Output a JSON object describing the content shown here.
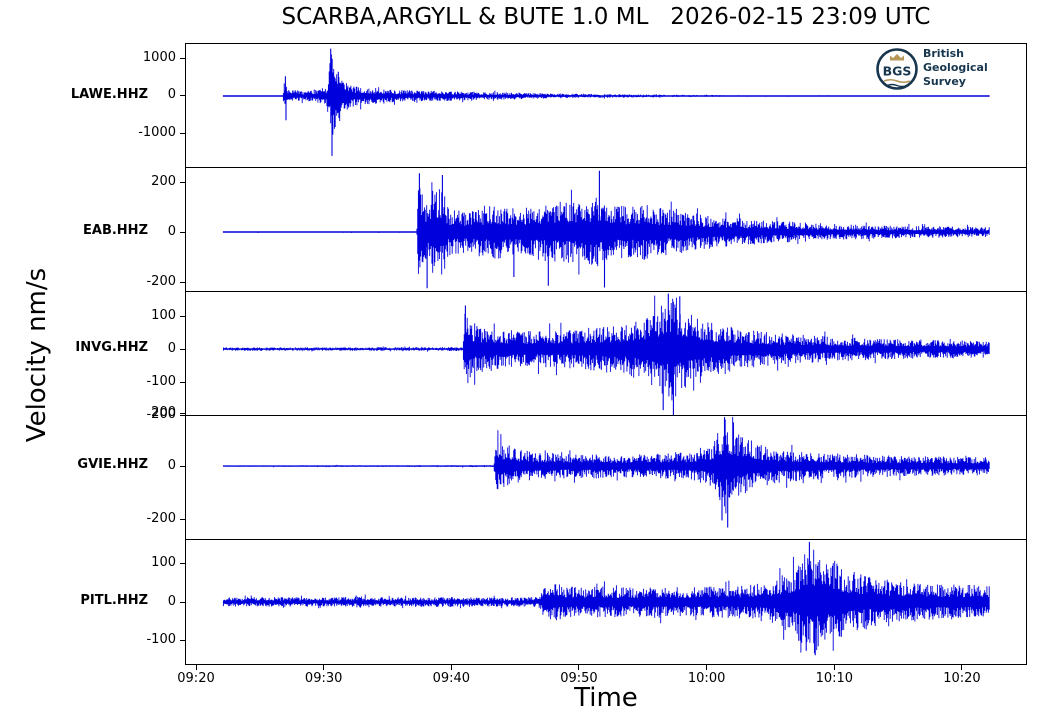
{
  "chart_data": {
    "type": "line",
    "subtype": "seismogram-multitrace",
    "title": "SCARBA,ARGYLL & BUTE 1.0 ML   2026-02-15 23:09 UTC",
    "xlabel": "Time",
    "ylabel": "Velocity nm/s",
    "colors": {
      "trace": "#0000dd",
      "axis": "#000000",
      "logo_navy": "#17364e",
      "logo_gold": "#b5985a"
    },
    "x_axis": {
      "ticks": [
        "09:20",
        "09:30",
        "09:40",
        "09:50",
        "10:00",
        "10:10",
        "10:20"
      ],
      "tick_minutes": [
        20,
        30,
        40,
        50,
        60,
        70,
        80
      ],
      "data_start_min": 22.15,
      "data_end_min": 82.15
    },
    "series": [
      {
        "label": "LAWE.HHZ",
        "yticks": [
          1000,
          0,
          -1000
        ],
        "ylim": [
          -1900,
          1370
        ],
        "envelope": [
          [
            22.15,
            3
          ],
          [
            26.8,
            3
          ],
          [
            26.95,
            480
          ],
          [
            27.2,
            130
          ],
          [
            27.8,
            160
          ],
          [
            28.6,
            130
          ],
          [
            29.5,
            170
          ],
          [
            30.2,
            230
          ],
          [
            30.5,
            900
          ],
          [
            30.7,
            1500
          ],
          [
            31.0,
            700
          ],
          [
            31.5,
            420
          ],
          [
            32.2,
            300
          ],
          [
            33.5,
            230
          ],
          [
            35,
            180
          ],
          [
            37,
            145
          ],
          [
            40,
            128
          ],
          [
            44,
            100
          ],
          [
            48,
            68
          ],
          [
            53,
            45
          ],
          [
            58,
            30
          ],
          [
            64,
            20
          ],
          [
            72,
            15
          ],
          [
            82.15,
            10
          ]
        ],
        "spikes": [
          [
            27.0,
            520
          ],
          [
            27.05,
            -640
          ],
          [
            30.55,
            1250
          ],
          [
            30.65,
            -1580
          ],
          [
            30.9,
            -820
          ],
          [
            31.15,
            640
          ]
        ]
      },
      {
        "label": "EAB.HHZ",
        "yticks": [
          200,
          0,
          -200
        ],
        "ylim": [
          -240,
          256
        ],
        "envelope": [
          [
            22.15,
            3
          ],
          [
            37.3,
            3
          ],
          [
            37.45,
            220
          ],
          [
            37.8,
            120
          ],
          [
            38.4,
            170
          ],
          [
            39.2,
            200
          ],
          [
            39.8,
            95
          ],
          [
            41,
            85
          ],
          [
            42.5,
            105
          ],
          [
            44,
            110
          ],
          [
            45.5,
            95
          ],
          [
            47,
            115
          ],
          [
            48.5,
            125
          ],
          [
            50,
            130
          ],
          [
            51.5,
            140
          ],
          [
            52.3,
            110
          ],
          [
            53.5,
            105
          ],
          [
            55,
            115
          ],
          [
            56.5,
            95
          ],
          [
            58,
            85
          ],
          [
            60,
            70
          ],
          [
            62.5,
            55
          ],
          [
            65,
            45
          ],
          [
            68,
            38
          ],
          [
            71,
            30
          ],
          [
            75,
            25
          ],
          [
            82.15,
            20
          ]
        ],
        "spikes": [
          [
            37.5,
            235
          ],
          [
            38.1,
            -225
          ],
          [
            39.3,
            228
          ],
          [
            44.9,
            -180
          ],
          [
            47.6,
            -215
          ],
          [
            51.6,
            245
          ],
          [
            52.0,
            -222
          ]
        ]
      },
      {
        "label": "INVG.HHZ",
        "yticks": [
          100,
          0,
          -100,
          -200
        ],
        "ylim": [
          -203,
          173
        ],
        "envelope": [
          [
            22.15,
            5
          ],
          [
            40.9,
            6
          ],
          [
            41.05,
            130
          ],
          [
            41.5,
            85
          ],
          [
            42.5,
            70
          ],
          [
            44,
            62
          ],
          [
            46,
            55
          ],
          [
            48,
            58
          ],
          [
            50,
            62
          ],
          [
            52,
            70
          ],
          [
            54,
            85
          ],
          [
            55.5,
            105
          ],
          [
            56.5,
            140
          ],
          [
            57.2,
            172
          ],
          [
            57.8,
            150
          ],
          [
            58.5,
            120
          ],
          [
            59.5,
            95
          ],
          [
            61,
            75
          ],
          [
            63,
            60
          ],
          [
            65,
            50
          ],
          [
            68,
            42
          ],
          [
            71,
            36
          ],
          [
            75,
            30
          ],
          [
            82.15,
            26
          ]
        ],
        "spikes": [
          [
            41.1,
            132
          ],
          [
            56.6,
            -185
          ],
          [
            57.0,
            168
          ],
          [
            57.4,
            -200
          ],
          [
            57.9,
            160
          ]
        ]
      },
      {
        "label": "GVIE.HHZ",
        "yticks": [
          200,
          0,
          -200
        ],
        "ylim": [
          -279,
          189
        ],
        "envelope": [
          [
            22.15,
            3
          ],
          [
            43.3,
            4
          ],
          [
            43.55,
            105
          ],
          [
            44.2,
            75
          ],
          [
            45.5,
            60
          ],
          [
            47,
            52
          ],
          [
            49,
            46
          ],
          [
            51,
            48
          ],
          [
            53,
            44
          ],
          [
            55,
            46
          ],
          [
            57,
            48
          ],
          [
            59,
            55
          ],
          [
            60.3,
            75
          ],
          [
            61.0,
            140
          ],
          [
            61.5,
            185
          ],
          [
            62.0,
            150
          ],
          [
            62.8,
            110
          ],
          [
            64,
            80
          ],
          [
            65.5,
            65
          ],
          [
            67.5,
            55
          ],
          [
            70,
            48
          ],
          [
            73,
            42
          ],
          [
            77,
            38
          ],
          [
            82.15,
            35
          ]
        ],
        "spikes": [
          [
            61.2,
            -205
          ],
          [
            61.4,
            185
          ],
          [
            61.65,
            -232
          ],
          [
            62.1,
            165
          ]
        ]
      },
      {
        "label": "PITL.HHZ",
        "yticks": [
          100,
          0,
          -100
        ],
        "ylim": [
          -163,
          163
        ],
        "envelope": [
          [
            22.15,
            12
          ],
          [
            26,
            13
          ],
          [
            30,
            12
          ],
          [
            33,
            15
          ],
          [
            35,
            12
          ],
          [
            40,
            13
          ],
          [
            43,
            12
          ],
          [
            46.8,
            13
          ],
          [
            47.2,
            35
          ],
          [
            48,
            50
          ],
          [
            49,
            42
          ],
          [
            50.5,
            38
          ],
          [
            52,
            42
          ],
          [
            54,
            38
          ],
          [
            56,
            42
          ],
          [
            58,
            38
          ],
          [
            60,
            40
          ],
          [
            62,
            42
          ],
          [
            64,
            48
          ],
          [
            65.5,
            60
          ],
          [
            66.5,
            85
          ],
          [
            67.5,
            120
          ],
          [
            68.3,
            150
          ],
          [
            69,
            125
          ],
          [
            70,
            105
          ],
          [
            71,
            85
          ],
          [
            72.5,
            70
          ],
          [
            74,
            60
          ],
          [
            76,
            52
          ],
          [
            78,
            48
          ],
          [
            80,
            45
          ],
          [
            82.15,
            45
          ]
        ],
        "spikes": [
          [
            67.8,
            -128
          ],
          [
            68.05,
            158
          ],
          [
            68.5,
            -140
          ]
        ]
      }
    ],
    "logo": {
      "abbr": "BGS",
      "lines": [
        "British",
        "Geological",
        "Survey"
      ]
    }
  }
}
